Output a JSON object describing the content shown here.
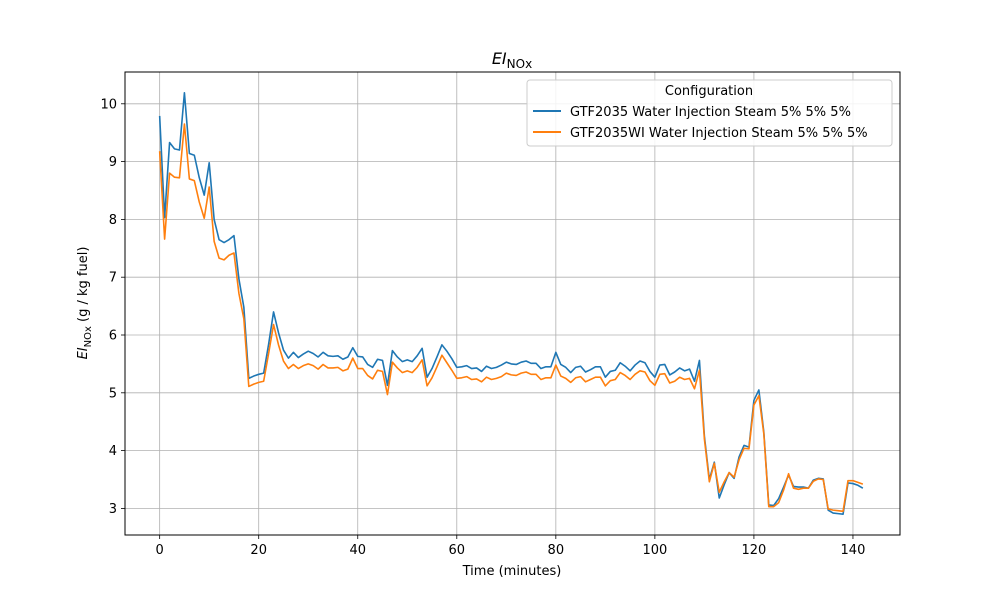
{
  "chart_data": {
    "type": "line",
    "title": "EI",
    "title_subscript": "NOx",
    "xlabel": "Time (minutes)",
    "ylabel_main": "EI",
    "ylabel_subscript": "NOx",
    "ylabel_suffix": " (g / kg fuel)",
    "xlim": [
      -7,
      149.5
    ],
    "ylim": [
      2.54,
      10.55
    ],
    "xticks": [
      0,
      20,
      40,
      60,
      80,
      100,
      120,
      140
    ],
    "yticks": [
      3,
      4,
      5,
      6,
      7,
      8,
      9,
      10
    ],
    "grid": true,
    "legend": {
      "title": "Configuration",
      "position": "upper-right"
    },
    "series": [
      {
        "name": "GTF2035 Water Injection Steam 5% 5% 5%",
        "color": "#1f77b4",
        "x": [
          0,
          1,
          2,
          3,
          4,
          5,
          6,
          7,
          8,
          9,
          10,
          11,
          12,
          13,
          14,
          15,
          16,
          17,
          18,
          19,
          20,
          21,
          22,
          23,
          24,
          25,
          26,
          27,
          28,
          29,
          30,
          31,
          32,
          33,
          34,
          35,
          36,
          37,
          38,
          39,
          40,
          41,
          42,
          43,
          44,
          45,
          46,
          47,
          48,
          49,
          50,
          51,
          52,
          53,
          54,
          55,
          56,
          57,
          58,
          59,
          60,
          61,
          62,
          63,
          64,
          65,
          66,
          67,
          68,
          69,
          70,
          71,
          72,
          73,
          74,
          75,
          76,
          77,
          78,
          79,
          80,
          81,
          82,
          83,
          84,
          85,
          86,
          87,
          88,
          89,
          90,
          91,
          92,
          93,
          94,
          95,
          96,
          97,
          98,
          99,
          100,
          101,
          102,
          103,
          104,
          105,
          106,
          107,
          108,
          109,
          110,
          111,
          112,
          113,
          114,
          115,
          116,
          117,
          118,
          119,
          120,
          121,
          122,
          123,
          124,
          125,
          126,
          127,
          128,
          129,
          130,
          131,
          132,
          133,
          134,
          135,
          136,
          137,
          138,
          139,
          140,
          141,
          142
        ],
        "y": [
          9.79,
          8.03,
          9.33,
          9.22,
          9.2,
          10.19,
          9.14,
          9.11,
          8.72,
          8.42,
          8.98,
          8.0,
          7.65,
          7.6,
          7.65,
          7.72,
          6.97,
          6.48,
          5.25,
          5.29,
          5.32,
          5.34,
          5.84,
          6.4,
          6.04,
          5.74,
          5.6,
          5.7,
          5.61,
          5.67,
          5.72,
          5.68,
          5.62,
          5.7,
          5.64,
          5.63,
          5.64,
          5.58,
          5.62,
          5.78,
          5.63,
          5.62,
          5.49,
          5.44,
          5.58,
          5.56,
          5.13,
          5.73,
          5.62,
          5.54,
          5.57,
          5.54,
          5.64,
          5.77,
          5.27,
          5.42,
          5.62,
          5.83,
          5.72,
          5.59,
          5.44,
          5.45,
          5.47,
          5.42,
          5.43,
          5.37,
          5.46,
          5.42,
          5.44,
          5.48,
          5.53,
          5.5,
          5.49,
          5.53,
          5.55,
          5.51,
          5.51,
          5.42,
          5.45,
          5.45,
          5.7,
          5.49,
          5.44,
          5.35,
          5.44,
          5.46,
          5.36,
          5.4,
          5.45,
          5.45,
          5.27,
          5.37,
          5.39,
          5.52,
          5.46,
          5.38,
          5.48,
          5.55,
          5.52,
          5.37,
          5.27,
          5.48,
          5.49,
          5.31,
          5.36,
          5.43,
          5.38,
          5.41,
          5.2,
          5.56,
          4.25,
          3.5,
          3.8,
          3.18,
          3.41,
          3.62,
          3.52,
          3.89,
          4.09,
          4.06,
          4.87,
          5.05,
          4.32,
          3.06,
          3.05,
          3.17,
          3.37,
          3.58,
          3.38,
          3.37,
          3.37,
          3.35,
          3.49,
          3.52,
          3.51,
          2.97,
          2.92,
          2.91,
          2.9,
          3.44,
          3.43,
          3.4,
          3.35
        ]
      },
      {
        "name": "GTF2035WI Water Injection Steam 5% 5% 5%",
        "color": "#ff7f0e",
        "x": [
          0,
          1,
          2,
          3,
          4,
          5,
          6,
          7,
          8,
          9,
          10,
          11,
          12,
          13,
          14,
          15,
          16,
          17,
          18,
          19,
          20,
          21,
          22,
          23,
          24,
          25,
          26,
          27,
          28,
          29,
          30,
          31,
          32,
          33,
          34,
          35,
          36,
          37,
          38,
          39,
          40,
          41,
          42,
          43,
          44,
          45,
          46,
          47,
          48,
          49,
          50,
          51,
          52,
          53,
          54,
          55,
          56,
          57,
          58,
          59,
          60,
          61,
          62,
          63,
          64,
          65,
          66,
          67,
          68,
          69,
          70,
          71,
          72,
          73,
          74,
          75,
          76,
          77,
          78,
          79,
          80,
          81,
          82,
          83,
          84,
          85,
          86,
          87,
          88,
          89,
          90,
          91,
          92,
          93,
          94,
          95,
          96,
          97,
          98,
          99,
          100,
          101,
          102,
          103,
          104,
          105,
          106,
          107,
          108,
          109,
          110,
          111,
          112,
          113,
          114,
          115,
          116,
          117,
          118,
          119,
          120,
          121,
          122,
          123,
          124,
          125,
          126,
          127,
          128,
          129,
          130,
          131,
          132,
          133,
          134,
          135,
          136,
          137,
          138,
          139,
          140,
          141,
          142
        ],
        "y": [
          9.18,
          7.66,
          8.8,
          8.73,
          8.72,
          9.65,
          8.7,
          8.67,
          8.3,
          8.02,
          8.56,
          7.62,
          7.33,
          7.3,
          7.38,
          7.42,
          6.72,
          6.28,
          5.11,
          5.15,
          5.18,
          5.2,
          5.68,
          6.18,
          5.83,
          5.55,
          5.42,
          5.49,
          5.42,
          5.47,
          5.5,
          5.47,
          5.41,
          5.49,
          5.43,
          5.43,
          5.44,
          5.38,
          5.41,
          5.6,
          5.42,
          5.42,
          5.3,
          5.24,
          5.39,
          5.37,
          4.97,
          5.53,
          5.43,
          5.35,
          5.38,
          5.35,
          5.44,
          5.57,
          5.12,
          5.26,
          5.45,
          5.65,
          5.52,
          5.39,
          5.25,
          5.26,
          5.28,
          5.23,
          5.24,
          5.19,
          5.27,
          5.23,
          5.25,
          5.28,
          5.34,
          5.31,
          5.3,
          5.34,
          5.36,
          5.32,
          5.32,
          5.23,
          5.26,
          5.26,
          5.48,
          5.29,
          5.25,
          5.18,
          5.26,
          5.28,
          5.19,
          5.23,
          5.27,
          5.27,
          5.12,
          5.21,
          5.23,
          5.35,
          5.3,
          5.23,
          5.32,
          5.38,
          5.36,
          5.21,
          5.13,
          5.32,
          5.33,
          5.17,
          5.2,
          5.27,
          5.23,
          5.25,
          5.07,
          5.39,
          4.2,
          3.46,
          3.78,
          3.28,
          3.46,
          3.62,
          3.54,
          3.84,
          4.04,
          4.03,
          4.79,
          4.95,
          4.29,
          3.03,
          3.03,
          3.1,
          3.32,
          3.6,
          3.35,
          3.33,
          3.35,
          3.35,
          3.47,
          3.51,
          3.5,
          2.99,
          2.97,
          2.96,
          2.95,
          3.48,
          3.48,
          3.45,
          3.42
        ]
      }
    ]
  }
}
